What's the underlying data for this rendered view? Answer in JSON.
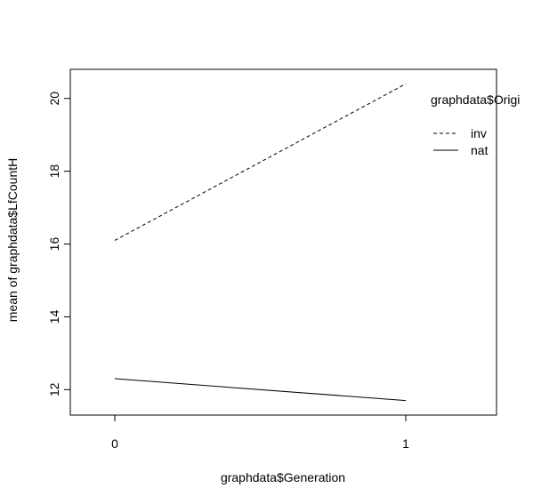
{
  "chart_data": {
    "type": "line",
    "title": "",
    "xlabel": "graphdata$Generation",
    "ylabel": "mean of  graphdata$LfCountH",
    "x": [
      "0",
      "1"
    ],
    "ylim": [
      11.3,
      20.8
    ],
    "y_ticks": [
      12,
      14,
      16,
      18,
      20
    ],
    "grid": false,
    "legend": {
      "title": "graphdata$Origi",
      "position": "top-right",
      "entries": [
        "inv",
        "nat"
      ]
    },
    "series": [
      {
        "name": "inv",
        "values": [
          16.1,
          20.4
        ],
        "line_style": "dashed"
      },
      {
        "name": "nat",
        "values": [
          12.3,
          11.7
        ],
        "line_style": "solid"
      }
    ]
  }
}
